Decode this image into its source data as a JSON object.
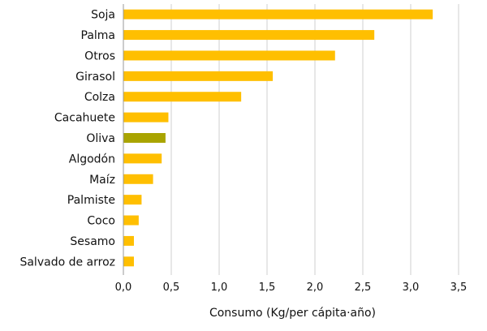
{
  "chart_data": {
    "type": "bar",
    "orientation": "horizontal",
    "title": "",
    "xlabel": "Consumo (Kg/per cápita·año)",
    "ylabel": "",
    "xlim": [
      0,
      3.5
    ],
    "grid": true,
    "x_ticks": [
      0,
      0.5,
      1.0,
      1.5,
      2.0,
      2.5,
      3.0,
      3.5
    ],
    "x_tick_labels": [
      "0,0",
      "0,5",
      "1,0",
      "1,5",
      "2,0",
      "2,5",
      "3,0",
      "3,5"
    ],
    "categories": [
      "Soja",
      "Palma",
      "Otros",
      "Girasol",
      "Colza",
      "Cacahuete",
      "Oliva",
      "Algodón",
      "Maíz",
      "Palmiste",
      "Coco",
      "Sesamo",
      "Salvado de arroz"
    ],
    "values": [
      3.23,
      2.62,
      2.21,
      1.56,
      1.23,
      0.47,
      0.44,
      0.4,
      0.31,
      0.19,
      0.16,
      0.11,
      0.11
    ],
    "colors": {
      "default_bar": "#FFBF00",
      "highlight_bar": "#A9A400",
      "highlight_category": "Oliva",
      "grid": "#CFCFCF",
      "axis": "#9A9A9A"
    }
  }
}
